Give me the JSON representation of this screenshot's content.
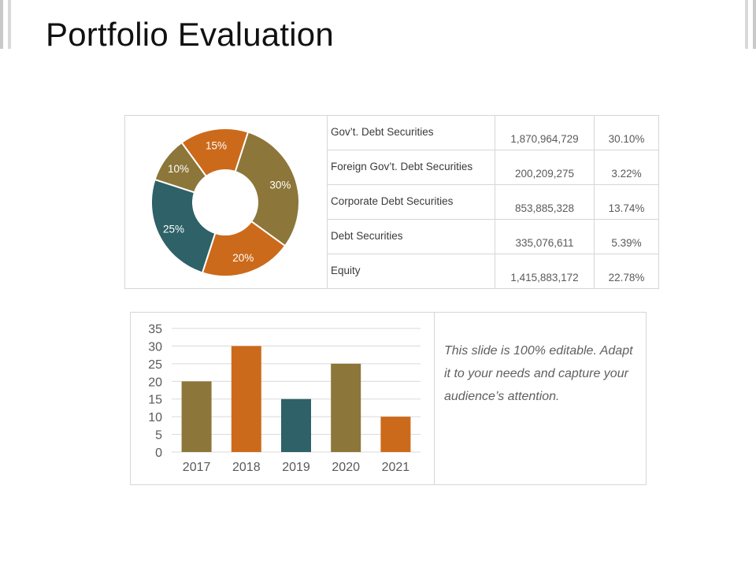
{
  "slide": {
    "title": "Portfolio Evaluation",
    "note": "This slide is 100% editable. Adapt it to your needs and capture your audience’s attention."
  },
  "holdings": [
    {
      "name": "Gov’t. Debt Securities",
      "amount": "1,870,964,729",
      "percent": "30.10%"
    },
    {
      "name": "Foreign Gov’t. Debt Securities",
      "amount": "200,209,275",
      "percent": "3.22%"
    },
    {
      "name": "Corporate Debt Securities",
      "amount": "853,885,328",
      "percent": "13.74%"
    },
    {
      "name": "Debt Securities",
      "amount": "335,076,611",
      "percent": "5.39%"
    },
    {
      "name": "Equity",
      "amount": "1,415,883,172",
      "percent": "22.78%"
    }
  ],
  "colors": {
    "olive": "#8c7639",
    "orange": "#cc6a1b",
    "teal": "#2e6168"
  },
  "chart_data": [
    {
      "type": "pie",
      "donut": true,
      "start_angle_deg": 18,
      "direction": "clockwise",
      "slices": [
        {
          "label": "30%",
          "value": 30,
          "color": "#8c7639"
        },
        {
          "label": "20%",
          "value": 20,
          "color": "#cc6a1b"
        },
        {
          "label": "25%",
          "value": 25,
          "color": "#2e6168"
        },
        {
          "label": "10%",
          "value": 10,
          "color": "#8c7639"
        },
        {
          "label": "15%",
          "value": 15,
          "color": "#cc6a1b"
        }
      ]
    },
    {
      "type": "bar",
      "categories": [
        "2017",
        "2018",
        "2019",
        "2020",
        "2021"
      ],
      "values": [
        20,
        30,
        15,
        25,
        10
      ],
      "colors": [
        "#8c7639",
        "#cc6a1b",
        "#2e6168",
        "#8c7639",
        "#cc6a1b"
      ],
      "ylim": [
        0,
        35
      ],
      "yticks": [
        0,
        5,
        10,
        15,
        20,
        25,
        30,
        35
      ],
      "grid": true
    }
  ]
}
